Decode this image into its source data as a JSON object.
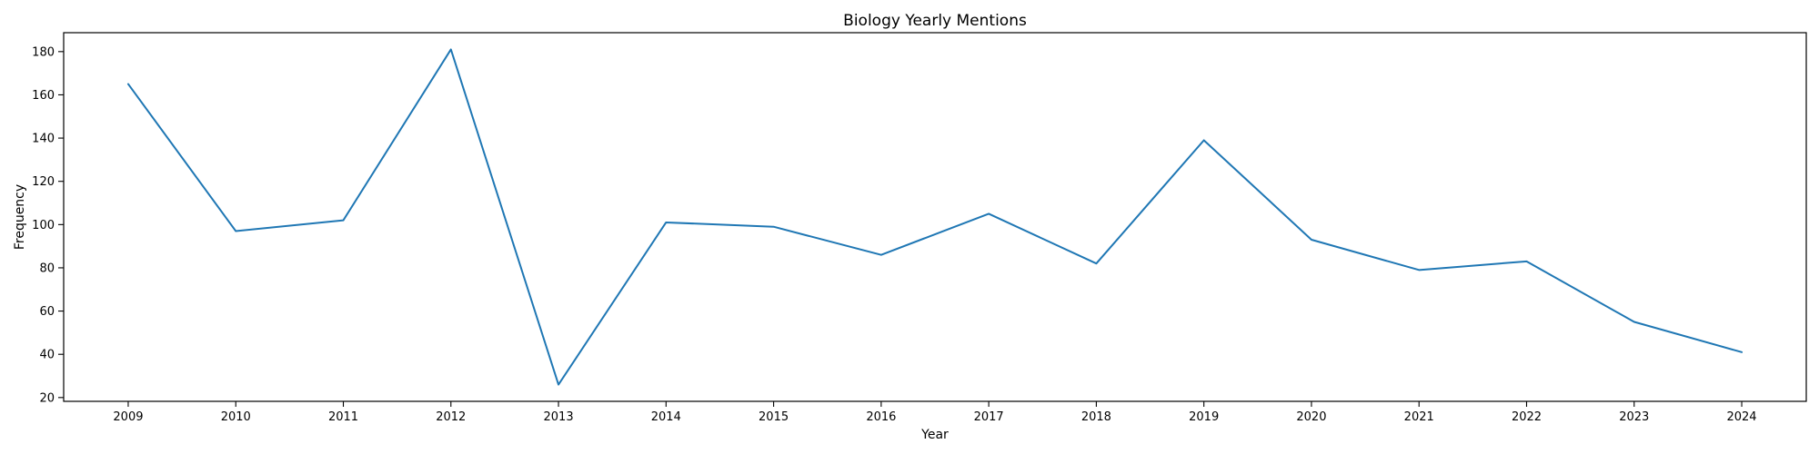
{
  "chart_data": {
    "type": "line",
    "title": "Biology Yearly Mentions",
    "xlabel": "Year",
    "ylabel": "Frequency",
    "x": [
      "2009",
      "2010",
      "2011",
      "2012",
      "2013",
      "2014",
      "2015",
      "2016",
      "2017",
      "2018",
      "2019",
      "2020",
      "2021",
      "2022",
      "2023",
      "2024"
    ],
    "series": [
      {
        "values": [
          165,
          97,
          102,
          181,
          26,
          101,
          99,
          86,
          105,
          82,
          139,
          93,
          79,
          83,
          55,
          41
        ],
        "color": "#1f77b4"
      }
    ],
    "yticks": [
      20,
      40,
      60,
      80,
      100,
      120,
      140,
      160,
      180
    ],
    "ylim": [
      18.25,
      188.75
    ],
    "grid": false,
    "legend": "none"
  }
}
